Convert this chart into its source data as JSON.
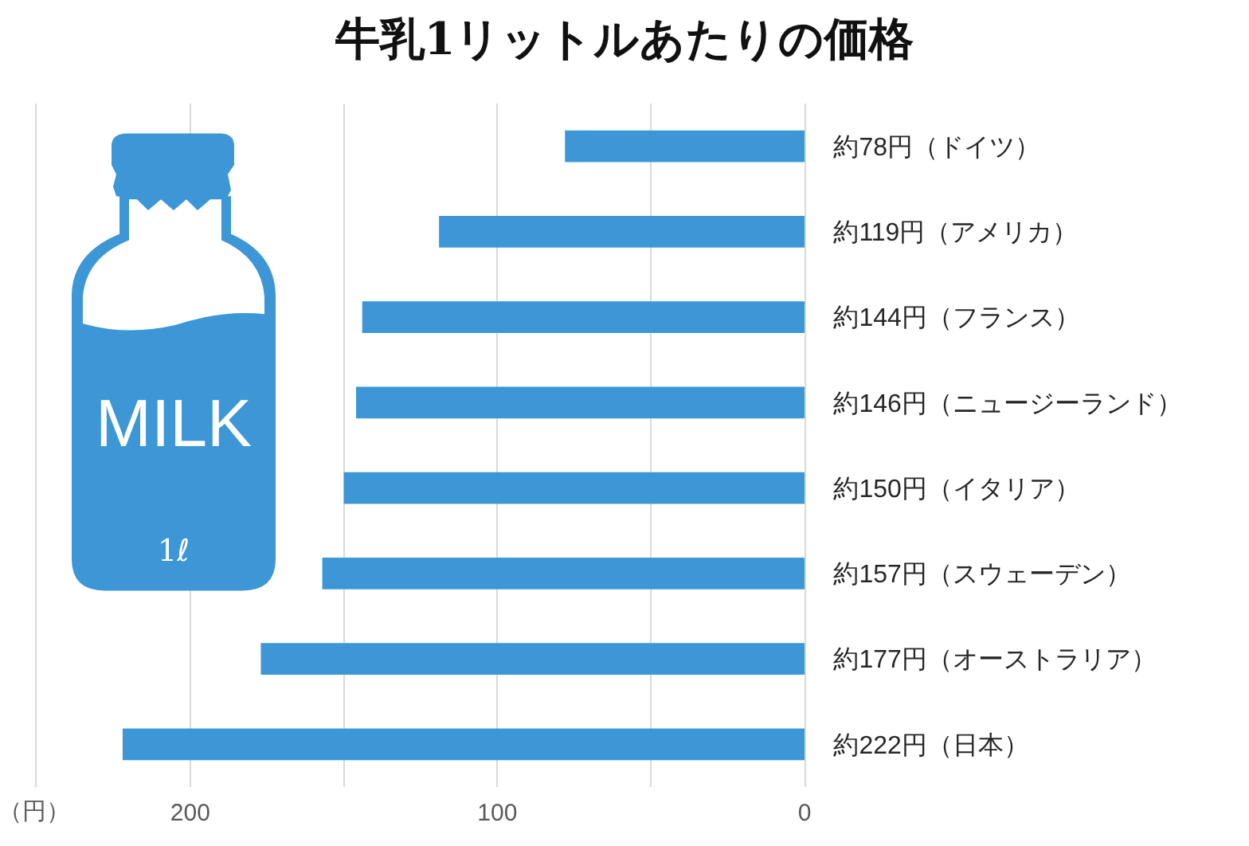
{
  "chart_data": {
    "type": "bar",
    "orientation": "horizontal",
    "title": "牛乳1リットルあたりの価格",
    "xlabel": "（円）",
    "categories": [
      "約78円（ドイツ）",
      "約119円（アメリカ）",
      "約144円（フランス）",
      "約146円（ニュージーランド）",
      "約150円（イタリア）",
      "約157円（スウェーデン）",
      "約177円（オーストラリア）",
      "約222円（日本）"
    ],
    "values": [
      78,
      119,
      144,
      146,
      150,
      157,
      177,
      222
    ],
    "color": "#3d97d6",
    "xlim": [
      250,
      0
    ],
    "xticks": [
      0,
      {
        "value": 50,
        "label": null
      },
      100,
      {
        "value": 150,
        "label": null
      },
      200,
      {
        "value": 250,
        "label": null
      }
    ],
    "grid": "x",
    "annotations": [
      "MILK",
      "1ℓ"
    ]
  }
}
